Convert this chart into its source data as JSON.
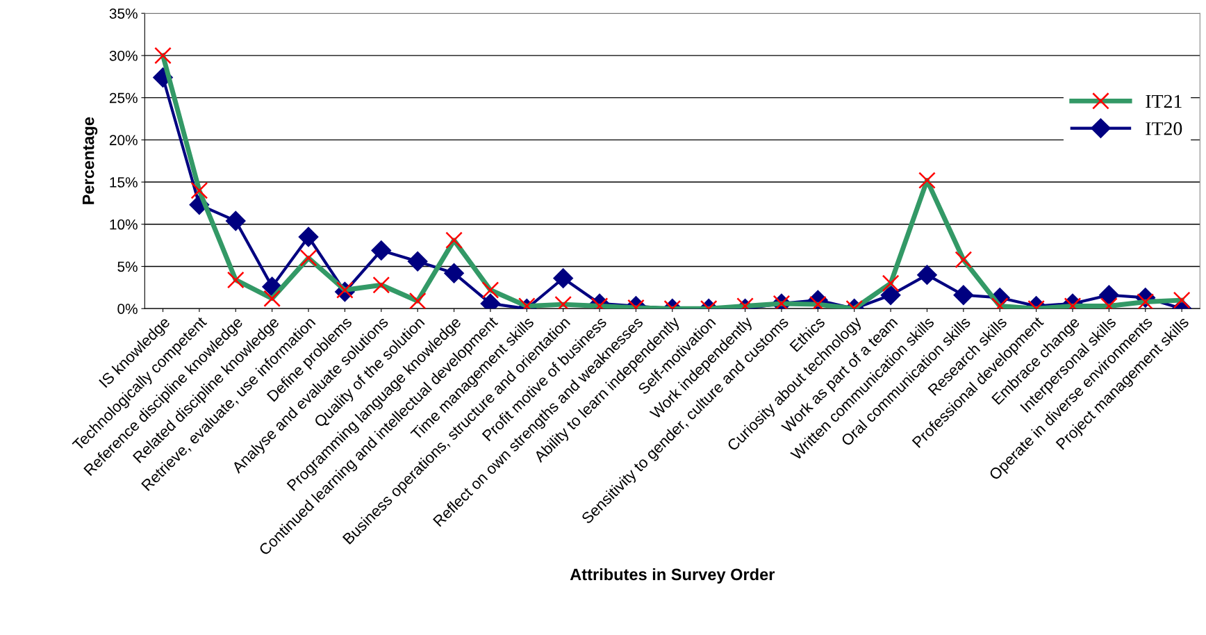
{
  "chart_data": {
    "type": "line",
    "xlabel": "Attributes in Survey Order",
    "ylabel": "Percentage",
    "categories": [
      "IS knowledge",
      "Technologically competent",
      "Reference discipline knowledge",
      "Related discipline knowledge",
      "Retrieve, evaluate, use information",
      "Define problems",
      "Analyse and evaluate solutions",
      "Quality of the solution",
      "Programming language knowledge",
      "Continued learning and intellectual development",
      "Time management skills",
      "Business operations, structure and orientation",
      "Profit motive of business",
      "Reflect on own strengths and weaknesses",
      "Ability to learn independently",
      "Self-motivation",
      "Work independently",
      "Sensitivity to gender, culture and customs",
      "Ethics",
      "Curiosity about technology",
      "Work as part of a team",
      "Written communication skills",
      "Oral communication skills",
      "Research skills",
      "Professional development",
      "Embrace change",
      "Interpersonal skills",
      "Operate in diverse environments",
      "Project management skills"
    ],
    "series": [
      {
        "name": "IT21",
        "color": "#339966",
        "marker": "cross",
        "values": [
          30,
          14,
          3.4,
          1.2,
          6.0,
          2.2,
          2.8,
          0.9,
          8.1,
          2.2,
          0.3,
          0.5,
          0.3,
          0.1,
          0,
          0,
          0.3,
          0.6,
          0.5,
          0,
          3.0,
          15.2,
          5.8,
          0.3,
          0,
          0.3,
          0.3,
          0.8,
          1.0
        ]
      },
      {
        "name": "IT20",
        "color": "#000080",
        "marker": "diamond",
        "values": [
          27.4,
          12.3,
          10.4,
          2.6,
          8.5,
          2.0,
          6.9,
          5.6,
          4.2,
          0.6,
          0,
          3.6,
          0.6,
          0.3,
          0,
          0,
          0,
          0.6,
          1.0,
          0,
          1.6,
          4.0,
          1.6,
          1.3,
          0.3,
          0.6,
          1.6,
          1.3,
          0
        ]
      }
    ],
    "ylim": [
      0,
      35
    ],
    "yticks": [
      {
        "value": 0,
        "label": "0%"
      },
      {
        "value": 5,
        "label": "5%"
      },
      {
        "value": 10,
        "label": "10%"
      },
      {
        "value": 15,
        "label": "15%"
      },
      {
        "value": 20,
        "label": "20%"
      },
      {
        "value": 25,
        "label": "25%"
      },
      {
        "value": 30,
        "label": "30%"
      },
      {
        "value": 35,
        "label": "35%"
      }
    ],
    "grid": "y",
    "legend": "center right",
    "line_style": "solid"
  }
}
